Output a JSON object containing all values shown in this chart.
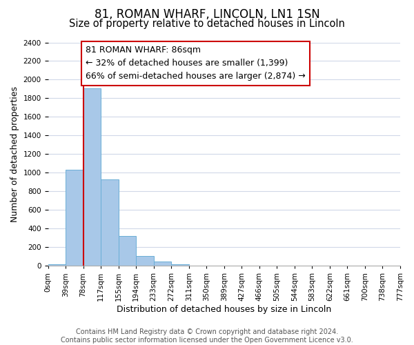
{
  "title": "81, ROMAN WHARF, LINCOLN, LN1 1SN",
  "subtitle": "Size of property relative to detached houses in Lincoln",
  "xlabel": "Distribution of detached houses by size in Lincoln",
  "ylabel": "Number of detached properties",
  "bin_labels": [
    "0sqm",
    "39sqm",
    "78sqm",
    "117sqm",
    "155sqm",
    "194sqm",
    "233sqm",
    "272sqm",
    "311sqm",
    "350sqm",
    "389sqm",
    "427sqm",
    "466sqm",
    "505sqm",
    "544sqm",
    "583sqm",
    "622sqm",
    "661sqm",
    "700sqm",
    "738sqm",
    "777sqm"
  ],
  "bar_values": [
    20,
    1030,
    1910,
    930,
    320,
    105,
    50,
    20,
    0,
    0,
    0,
    0,
    0,
    0,
    0,
    0,
    0,
    0,
    0,
    0
  ],
  "bar_color": "#a8c8e8",
  "bar_edge_color": "#6aaed6",
  "property_line_x": 2,
  "property_line_color": "#cc0000",
  "ylim": [
    0,
    2400
  ],
  "yticks": [
    0,
    200,
    400,
    600,
    800,
    1000,
    1200,
    1400,
    1600,
    1800,
    2000,
    2200,
    2400
  ],
  "annotation_title": "81 ROMAN WHARF: 86sqm",
  "annotation_line1": "← 32% of detached houses are smaller (1,399)",
  "annotation_line2": "66% of semi-detached houses are larger (2,874) →",
  "footer_line1": "Contains HM Land Registry data © Crown copyright and database right 2024.",
  "footer_line2": "Contains public sector information licensed under the Open Government Licence v3.0.",
  "background_color": "#ffffff",
  "grid_color": "#d0d8e8",
  "title_fontsize": 12,
  "subtitle_fontsize": 10.5,
  "axis_label_fontsize": 9,
  "tick_fontsize": 7.5,
  "footer_fontsize": 7,
  "annotation_fontsize": 9
}
